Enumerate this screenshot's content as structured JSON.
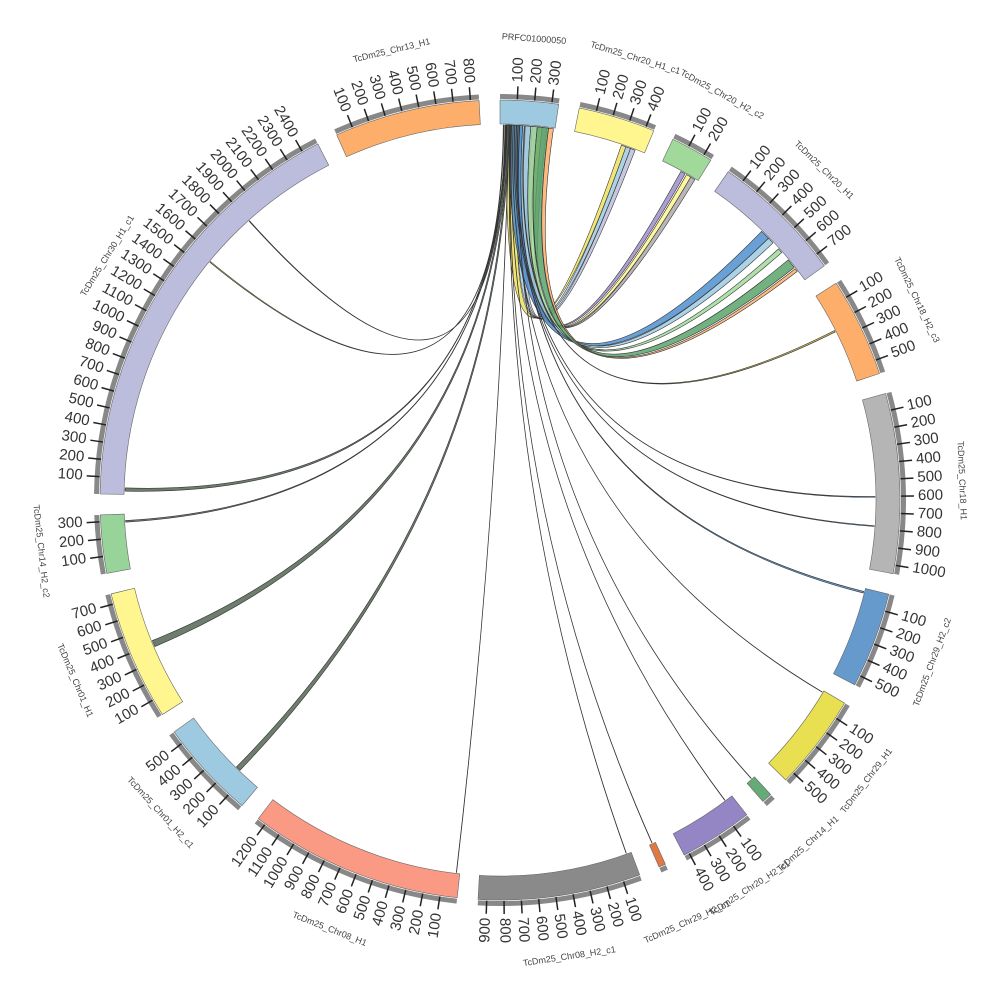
{
  "chart_data": {
    "type": "chord",
    "segments": [
      {
        "name": "PRFC01000050",
        "color": "#9ecae1",
        "length": 340,
        "ticks": [
          100,
          200,
          300
        ]
      },
      {
        "name": "TcDm25_Chr20_H1_c1",
        "color": "#fff68f",
        "length": 450,
        "ticks": [
          100,
          200,
          300,
          400
        ]
      },
      {
        "name": "TcDm25_Chr20_H2_c2",
        "color": "#a1d99b",
        "length": 250,
        "ticks": [
          100,
          200
        ]
      },
      {
        "name": "TcDm25_Chr20_H1",
        "color": "#bcbddc",
        "length": 780,
        "ticks": [
          100,
          200,
          300,
          400,
          500,
          600,
          700
        ]
      },
      {
        "name": "TcDm25_Chr18_H2_c3",
        "color": "#fdae6b",
        "length": 580,
        "ticks": [
          100,
          200,
          300,
          400,
          500
        ]
      },
      {
        "name": "TcDm25_Chr18_H1",
        "color": "#b5b5b5",
        "length": 1050,
        "ticks": [
          100,
          200,
          300,
          400,
          500,
          600,
          700,
          800,
          900,
          1000
        ]
      },
      {
        "name": "TcDm25_Chr29_H2_c2",
        "color": "#6699cc",
        "length": 560,
        "ticks": [
          100,
          200,
          300,
          400,
          500
        ]
      },
      {
        "name": "TcDm25_Chr29_H1",
        "color": "#e8e050",
        "length": 560,
        "ticks": [
          100,
          200,
          300,
          400,
          500
        ]
      },
      {
        "name": "TcDm25_Chr14_H1",
        "color": "#66aa77",
        "length": 60,
        "ticks": []
      },
      {
        "name": "TcDm25_Chr20_H2_c1",
        "color": "#9485c4",
        "length": 430,
        "ticks": [
          100,
          200,
          300,
          400
        ]
      },
      {
        "name": "TcDm25_Chr29_H2_c1",
        "color": "#e07a45",
        "length": 40,
        "ticks": []
      },
      {
        "name": "TcDm25_Chr08_H2_c1",
        "color": "#8a8a8a",
        "length": 950,
        "ticks": [
          100,
          200,
          300,
          400,
          500,
          600,
          700,
          800,
          900
        ]
      },
      {
        "name": "TcDm25_Chr08_H1",
        "color": "#fb9a84",
        "length": 1250,
        "ticks": [
          100,
          200,
          300,
          400,
          500,
          600,
          700,
          800,
          900,
          1000,
          1100,
          1200
        ]
      },
      {
        "name": "TcDm25_Chr01_H2_c1",
        "color": "#9ecae1",
        "length": 580,
        "ticks": [
          100,
          200,
          300,
          400,
          500
        ]
      },
      {
        "name": "TcDm25_Chr01_H1",
        "color": "#fff68f",
        "length": 760,
        "ticks": [
          100,
          200,
          300,
          400,
          500,
          600,
          700
        ]
      },
      {
        "name": "TcDm25_Chr14_H2_c2",
        "color": "#98d49a",
        "length": 340,
        "ticks": [
          100,
          200,
          300
        ]
      },
      {
        "name": "TcDm25_Chr30_H1_c1",
        "color": "#bcbddc",
        "length": 2500,
        "ticks": [
          100,
          200,
          300,
          400,
          500,
          600,
          700,
          800,
          900,
          1000,
          1100,
          1200,
          1300,
          1400,
          1500,
          1600,
          1700,
          1800,
          1900,
          2000,
          2100,
          2200,
          2300,
          2400
        ]
      },
      {
        "name": "TcDm25_Chr13_H1",
        "color": "#fdae6b",
        "length": 850,
        "ticks": [
          100,
          200,
          300,
          400,
          500,
          600,
          700,
          800
        ]
      }
    ],
    "links": [
      {
        "source": [
          0,
          20,
          24
        ],
        "target": [
          16,
          1550,
          1556
        ],
        "color": "#b5b54a"
      },
      {
        "source": [
          0,
          30,
          33
        ],
        "target": [
          16,
          1900,
          1904
        ],
        "color": "#999999"
      },
      {
        "source": [
          0,
          40,
          120
        ],
        "target": [
          1,
          300,
          330
        ],
        "color": "#f0e060"
      },
      {
        "source": [
          0,
          120,
          160
        ],
        "target": [
          1,
          330,
          360
        ],
        "color": "#9ecae1"
      },
      {
        "source": [
          0,
          160,
          200
        ],
        "target": [
          1,
          360,
          390
        ],
        "color": "#bcbddc"
      },
      {
        "source": [
          0,
          200,
          230
        ],
        "target": [
          2,
          130,
          160
        ],
        "color": "#9c8fc8"
      },
      {
        "source": [
          0,
          230,
          260
        ],
        "target": [
          2,
          170,
          200
        ],
        "color": "#fff68f"
      },
      {
        "source": [
          0,
          260,
          290
        ],
        "target": [
          2,
          200,
          230
        ],
        "color": "#aaaaaa"
      },
      {
        "source": [
          0,
          60,
          140
        ],
        "target": [
          3,
          380,
          440
        ],
        "color": "#4f8fcf"
      },
      {
        "source": [
          0,
          140,
          190
        ],
        "target": [
          3,
          440,
          480
        ],
        "color": "#9ecae1"
      },
      {
        "source": [
          0,
          190,
          230
        ],
        "target": [
          3,
          530,
          560
        ],
        "color": "#a1d99b"
      },
      {
        "source": [
          0,
          230,
          300
        ],
        "target": [
          3,
          620,
          680
        ],
        "color": "#5aa36a"
      },
      {
        "source": [
          0,
          300,
          330
        ],
        "target": [
          3,
          690,
          710
        ],
        "color": "#fdae6b"
      },
      {
        "source": [
          0,
          150,
          155
        ],
        "target": [
          4,
          240,
          250
        ],
        "color": "#c8b040"
      },
      {
        "source": [
          0,
          100,
          103
        ],
        "target": [
          5,
          600,
          605
        ],
        "color": "#4f8fcf"
      },
      {
        "source": [
          0,
          90,
          92
        ],
        "target": [
          5,
          780,
          785
        ],
        "color": "#4f8fcf"
      },
      {
        "source": [
          0,
          110,
          113
        ],
        "target": [
          6,
          20,
          30
        ],
        "color": "#4f8fcf"
      },
      {
        "source": [
          0,
          80,
          82
        ],
        "target": [
          7,
          10,
          12
        ],
        "color": "#c8b040"
      },
      {
        "source": [
          0,
          120,
          122
        ],
        "target": [
          8,
          20,
          22
        ],
        "color": "#5aa36a"
      },
      {
        "source": [
          0,
          70,
          72
        ],
        "target": [
          9,
          50,
          52
        ],
        "color": "#9c8fc8"
      },
      {
        "source": [
          0,
          65,
          67
        ],
        "target": [
          10,
          20,
          22
        ],
        "color": "#e07a45"
      },
      {
        "source": [
          0,
          60,
          62
        ],
        "target": [
          11,
          30,
          32
        ],
        "color": "#e07a45"
      },
      {
        "source": [
          0,
          55,
          57
        ],
        "target": [
          12,
          20,
          22
        ],
        "color": "#e07a45"
      },
      {
        "source": [
          0,
          50,
          60
        ],
        "target": [
          13,
          150,
          180
        ],
        "color": "#556655"
      },
      {
        "source": [
          0,
          45,
          55
        ],
        "target": [
          14,
          380,
          420
        ],
        "color": "#556655"
      },
      {
        "source": [
          0,
          40,
          43
        ],
        "target": [
          15,
          290,
          300
        ],
        "color": "#556655"
      },
      {
        "source": [
          0,
          35,
          38
        ],
        "target": [
          16,
          20,
          40
        ],
        "color": "#556655"
      }
    ]
  }
}
